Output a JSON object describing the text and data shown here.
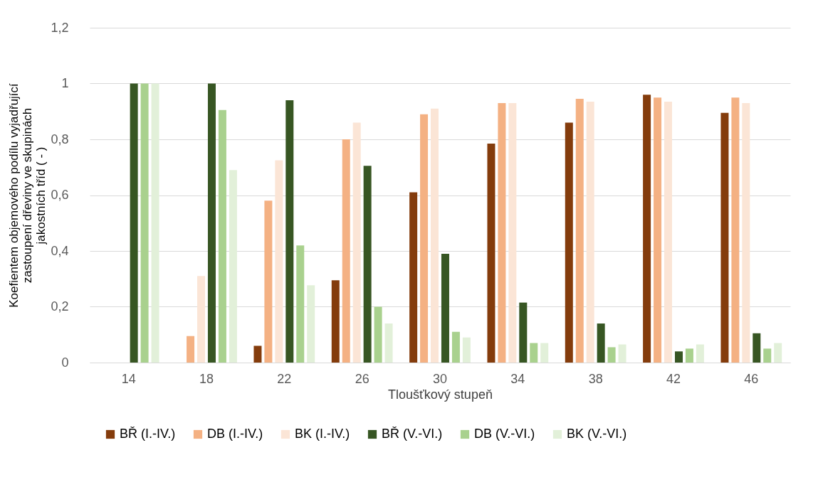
{
  "chart_data": {
    "type": "bar",
    "xlabel": "Tloušťkový stupeň",
    "ylabel": "Koefientem objemového podílu vyjadřující zastoupení dřeviny ve skupinách jakostních tříd ( - )",
    "categories": [
      "14",
      "18",
      "22",
      "26",
      "30",
      "34",
      "38",
      "42",
      "46"
    ],
    "series": [
      {
        "name": "BŘ (I.-IV.)",
        "color": "#843c0c",
        "values": [
          0,
          0,
          0.06,
          0.295,
          0.61,
          0.785,
          0.86,
          0.96,
          0.895
        ]
      },
      {
        "name": "DB (I.-IV.)",
        "color": "#f4b183",
        "values": [
          0,
          0.095,
          0.58,
          0.8,
          0.89,
          0.93,
          0.945,
          0.95,
          0.95
        ]
      },
      {
        "name": "BK (I.-IV.)",
        "color": "#fbe5d6",
        "values": [
          0,
          0.31,
          0.725,
          0.86,
          0.91,
          0.93,
          0.935,
          0.935,
          0.93
        ]
      },
      {
        "name": "BŘ (V.-VI.)",
        "color": "#375623",
        "values": [
          1,
          1,
          0.94,
          0.705,
          0.39,
          0.215,
          0.14,
          0.04,
          0.105
        ]
      },
      {
        "name": "DB (V.-VI.)",
        "color": "#a9d18e",
        "values": [
          1,
          0.905,
          0.42,
          0.2,
          0.11,
          0.07,
          0.055,
          0.05,
          0.05
        ]
      },
      {
        "name": "BK (V.-VI.)",
        "color": "#e2f0d9",
        "values": [
          1,
          0.69,
          0.277,
          0.14,
          0.09,
          0.07,
          0.065,
          0.065,
          0.07
        ]
      }
    ],
    "ylim": [
      0,
      1.2
    ],
    "yticks": [
      0,
      {
        "value": 0.2,
        "label": "0,2"
      },
      {
        "value": 0.4,
        "label": "0,4"
      },
      {
        "value": 0.6,
        "label": "0,6"
      },
      {
        "value": 0.8,
        "label": "0,8"
      },
      1,
      {
        "value": 1.2,
        "label": "1,2"
      }
    ],
    "grid": "y",
    "legend": "bottom"
  }
}
